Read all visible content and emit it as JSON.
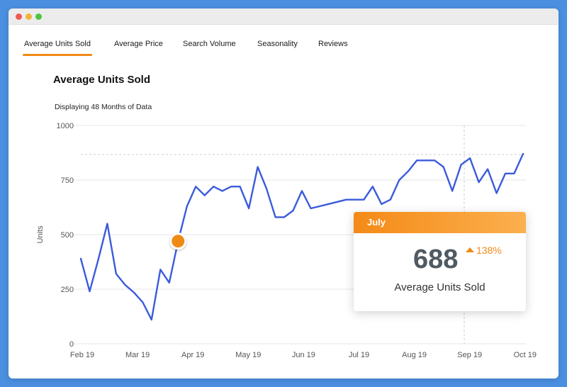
{
  "window": {
    "controls": {
      "close_color": "#ee5b55",
      "minimize_color": "#f3b43a",
      "maximize_color": "#4fc440"
    }
  },
  "tabs": [
    {
      "label": "Average Units Sold",
      "active": true
    },
    {
      "label": "Average Price",
      "active": false
    },
    {
      "label": "Search Volume",
      "active": false
    },
    {
      "label": "Seasonality",
      "active": false
    },
    {
      "label": "Reviews",
      "active": false
    }
  ],
  "chart_title": "Average Units Sold",
  "chart_subtitle": "Displaying 48 Months of Data",
  "tooltip": {
    "month": "July",
    "value": "688",
    "change": "138%",
    "label": "Average Units Sold"
  },
  "colors": {
    "line": "#3b5bdb",
    "accent": "#f08a16",
    "grid": "#e6e6e6"
  },
  "chart_data": {
    "type": "line",
    "ylabel": "Units",
    "ylim": [
      0,
      1000
    ],
    "yticks": [
      0,
      250,
      500,
      750,
      1000
    ],
    "x_ticks": [
      "Feb 19",
      "Mar 19",
      "Apr 19",
      "May 19",
      "Jun 19",
      "Jul 19",
      "Aug 19",
      "Sep 19",
      "Oct 19"
    ],
    "grid": true,
    "reference_line": 867,
    "highlight_index": 11,
    "series": [
      {
        "values": [
          390,
          240,
          390,
          550,
          320,
          270,
          235,
          190,
          110,
          340,
          280,
          470,
          630,
          720,
          680,
          720,
          700,
          720,
          720,
          620,
          810,
          710,
          580,
          580,
          610,
          700,
          620,
          630,
          640,
          650,
          660,
          660,
          660,
          720,
          640,
          660,
          750,
          790,
          840,
          840,
          840,
          810,
          700,
          820,
          850,
          740,
          800,
          690,
          780,
          780,
          870
        ]
      }
    ]
  }
}
